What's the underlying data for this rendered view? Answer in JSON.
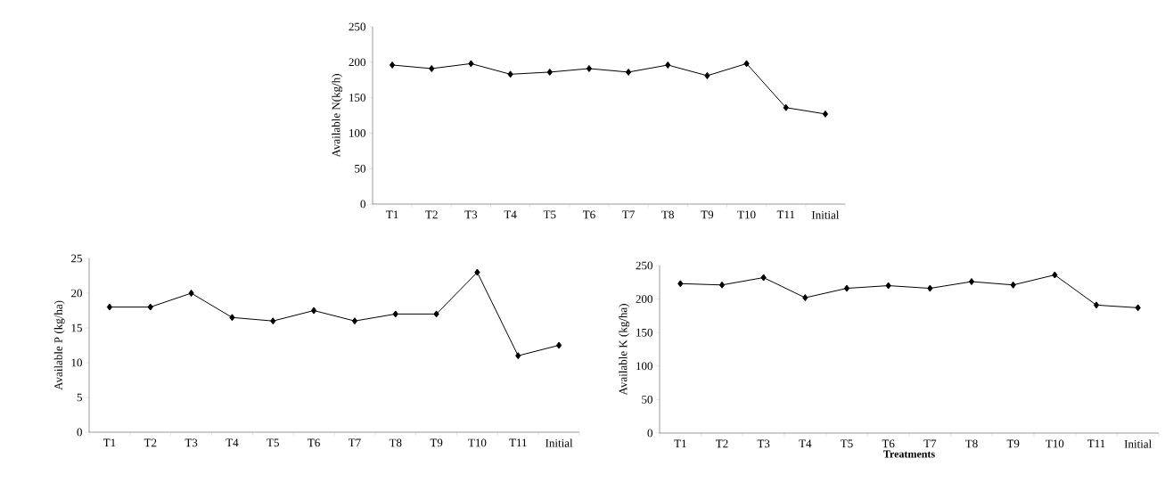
{
  "chart_data": [
    {
      "type": "line",
      "ylabel": "Available N(kg/h)",
      "categories": [
        "T1",
        "T2",
        "T3",
        "T4",
        "T5",
        "T6",
        "T7",
        "T8",
        "T9",
        "T10",
        "T11",
        "Initial"
      ],
      "values": [
        196,
        191,
        198,
        183,
        186,
        191,
        186,
        196,
        181,
        198,
        136,
        127
      ],
      "color": "#000000",
      "marker": "diamond",
      "ylim": [
        0,
        250
      ],
      "yticks": [
        0,
        50,
        100,
        150,
        200,
        250
      ]
    },
    {
      "type": "line",
      "ylabel": "Available P (kg/ha)",
      "categories": [
        "T1",
        "T2",
        "T3",
        "T4",
        "T5",
        "T6",
        "T7",
        "T8",
        "T9",
        "T10",
        "T11",
        "Initial"
      ],
      "values": [
        18,
        18,
        20,
        16.5,
        16,
        17.5,
        16,
        17,
        17,
        23,
        11,
        12.5
      ],
      "color": "#000000",
      "marker": "diamond",
      "ylim": [
        0,
        25
      ],
      "yticks": [
        0,
        5,
        10,
        15,
        20,
        25
      ]
    },
    {
      "type": "line",
      "xlabel": "Treatments",
      "ylabel": "Available K (kg/ha)",
      "categories": [
        "T1",
        "T2",
        "T3",
        "T4",
        "T5",
        "T6",
        "T7",
        "T8",
        "T9",
        "T10",
        "T11",
        "Initial"
      ],
      "values": [
        223,
        221,
        232,
        202,
        216,
        220,
        216,
        226,
        221,
        236,
        191,
        187
      ],
      "color": "#000000",
      "marker": "diamond",
      "ylim": [
        0,
        250
      ],
      "yticks": [
        0,
        50,
        100,
        150,
        200,
        250
      ]
    }
  ]
}
